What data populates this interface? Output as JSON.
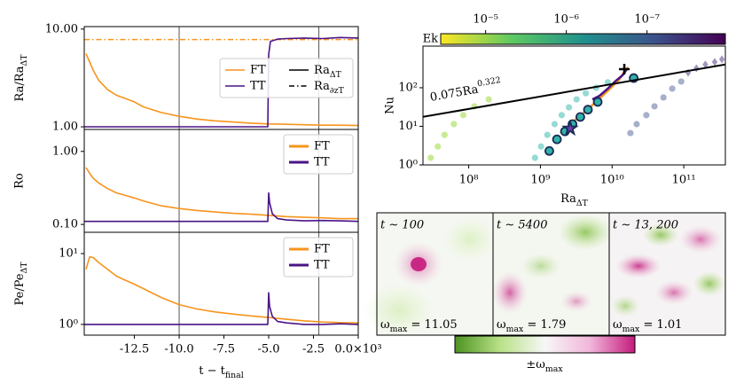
{
  "chart_data": [
    {
      "type": "line",
      "xlim": [
        -15.3,
        0
      ],
      "xticks": [
        -12.5,
        {
          "value": -10,
          "label": "-10.0"
        },
        -7.5,
        {
          "value": -5,
          "label": "-5.0"
        },
        -2.5,
        {
          "value": 0,
          "label": "0.0×10³"
        }
      ],
      "xlabel": {
        "text": "t − t",
        "sub": "final"
      },
      "vlines": [
        -10,
        -2.2
      ],
      "vline_color": "#555555",
      "panels": [
        {
          "ylabel": {
            "text": "Ra/Ra",
            "sub": "ΔT"
          },
          "log": true,
          "ylim": [
            0.94,
            10.6
          ],
          "yticks": [
            {
              "value": 1,
              "label": "1.00"
            },
            {
              "value": 10,
              "label": "10.00"
            }
          ],
          "legend": "center right",
          "legend_columns": 2,
          "legend_linewidth": 1.5,
          "hline": {
            "value": 7.8,
            "color": "#f7941d",
            "dash": "6 3 1.5 3"
          },
          "series": [
            {
              "name": "FT",
              "color": "#f7941d",
              "x": [
                -15.2,
                -15,
                -14.8,
                -14.5,
                -14,
                -13.5,
                -13,
                -12.5,
                -12,
                -11,
                -10,
                -9,
                -8,
                -7,
                -6,
                -5,
                -4,
                -3,
                -2,
                -1,
                0
              ],
              "values": [
                5.6,
                4.6,
                3.8,
                3.0,
                2.4,
                2.1,
                1.95,
                1.8,
                1.6,
                1.4,
                1.28,
                1.2,
                1.15,
                1.12,
                1.09,
                1.07,
                1.06,
                1.05,
                1.04,
                1.04,
                1.03
              ]
            },
            {
              "name": "TT",
              "color": "#4a1486",
              "x": [
                -15.3,
                -5.05,
                -5.0,
                -4.9,
                -4.5,
                -4,
                -3,
                -2,
                -1,
                0
              ],
              "values": [
                1.0,
                1.0,
                5.5,
                7.5,
                7.9,
                8.0,
                8.1,
                8.0,
                8.2,
                8.1
              ]
            }
          ],
          "legend_extra": [
            {
              "name": {
                "text": "Ra",
                "sub": "ΔT"
              },
              "color": "#000000",
              "dash": "none"
            },
            {
              "name": {
                "text": "Ra",
                "sub": "∂zT"
              },
              "color": "#000000",
              "dash": "6 3 1.5 3"
            }
          ]
        },
        {
          "ylabel": "Ro",
          "log": true,
          "ylim": [
            0.078,
            2.0
          ],
          "yticks": [
            {
              "value": 0.1,
              "label": "0.10"
            },
            {
              "value": 1,
              "label": "1.00"
            }
          ],
          "legend": "upper right",
          "legend_columns": 1,
          "legend_linewidth": 3,
          "series": [
            {
              "name": "FT",
              "color": "#f7941d",
              "x": [
                -15.2,
                -15,
                -14.8,
                -14.5,
                -14,
                -13.5,
                -13,
                -12.5,
                -12,
                -11,
                -10,
                -9,
                -8,
                -7,
                -6,
                -5,
                -4,
                -3,
                -2,
                -1,
                0
              ],
              "values": [
                0.6,
                0.5,
                0.43,
                0.37,
                0.31,
                0.27,
                0.25,
                0.23,
                0.21,
                0.18,
                0.165,
                0.155,
                0.148,
                0.142,
                0.138,
                0.133,
                0.128,
                0.125,
                0.123,
                0.12,
                0.12
              ]
            },
            {
              "name": "TT",
              "color": "#4a1486",
              "x": [
                -15.3,
                -5.05,
                -5.0,
                -4.95,
                -4.8,
                -4.5,
                -4,
                -3,
                -2,
                -1,
                0
              ],
              "values": [
                0.11,
                0.11,
                0.27,
                0.2,
                0.14,
                0.12,
                0.115,
                0.112,
                0.113,
                0.112,
                0.11
              ]
            }
          ]
        },
        {
          "ylabel": {
            "text": "Pe/Pe",
            "sub": "ΔT"
          },
          "log": true,
          "ylim": [
            0.705,
            20
          ],
          "yticks": [
            {
              "value": 1,
              "label": "10⁰"
            },
            {
              "value": 10,
              "label": "10¹"
            }
          ],
          "legend": "upper right",
          "legend_columns": 1,
          "legend_linewidth": 3,
          "series": [
            {
              "name": "FT",
              "color": "#f7941d",
              "x": [
                -15.2,
                -15,
                -14.8,
                -14.5,
                -14,
                -13.5,
                -13,
                -12.5,
                -12,
                -11,
                -10,
                -9,
                -8,
                -7,
                -6,
                -5,
                -4,
                -3,
                -2,
                -1,
                0
              ],
              "values": [
                6,
                9,
                8.8,
                7.5,
                6,
                4.8,
                4.2,
                3.7,
                3.2,
                2.4,
                1.9,
                1.65,
                1.5,
                1.4,
                1.32,
                1.25,
                1.18,
                1.12,
                1.08,
                1.06,
                1.05
              ]
            },
            {
              "name": "TT",
              "color": "#4a1486",
              "x": [
                -15.3,
                -5.05,
                -5.0,
                -4.95,
                -4.8,
                -4.5,
                -4,
                -3,
                -2,
                -1,
                0
              ],
              "values": [
                1,
                1,
                2.8,
                1.8,
                1.3,
                1.1,
                1.05,
                1.0,
                1.0,
                1.02,
                1.0
              ]
            }
          ]
        }
      ]
    },
    {
      "type": "scatter",
      "xlabel": {
        "text": "Ra",
        "sub": "ΔT"
      },
      "ylabel": "Nu",
      "log": true,
      "xlim": [
        23000000.0,
        380000000000.0
      ],
      "ylim": [
        1,
        1200
      ],
      "xticks": [
        {
          "value": 100000000.0,
          "label": "10⁸"
        },
        {
          "value": 1000000000.0,
          "label": "10⁹"
        },
        {
          "value": 10000000000.0,
          "label": "10¹⁰"
        },
        {
          "value": 100000000000.0,
          "label": "10¹¹"
        }
      ],
      "yticks": [
        {
          "value": 1,
          "label": "10⁰"
        },
        {
          "value": 10,
          "label": "10¹"
        },
        {
          "value": 100,
          "label": "10²"
        }
      ],
      "fit": {
        "coef": 0.075,
        "exp": 0.322,
        "color": "#000000"
      },
      "annotation": {
        "text": "0.075Ra",
        "sup": "0.322"
      },
      "colorbar": {
        "label": "Ek",
        "lim": [
          3.6e-05,
          1.07e-08
        ],
        "ticks": [
          {
            "value": 1e-05,
            "label": "10⁻⁵"
          },
          {
            "value": 1e-06,
            "label": "10⁻⁶"
          },
          {
            "value": 1e-07,
            "label": "10⁻⁷"
          }
        ],
        "colors": [
          "#fde725",
          "#5ec962",
          "#21918c",
          "#3b528b",
          "#440154"
        ]
      },
      "groups": [
        {
          "marker": "circle",
          "color": "#9bd93c",
          "alpha": 0.55,
          "x": [
            29500000.0,
            37000000.0,
            46000000.0,
            62000000.0,
            84000000.0,
            120000000.0,
            190000000.0
          ],
          "y": [
            1.53,
            3.0,
            6.0,
            11.4,
            19.5,
            33,
            50
          ]
        },
        {
          "marker": "circle",
          "color": "#3fbcb0",
          "alpha": 0.55,
          "x": [
            840000000.0,
            1020000000.0,
            1250000000.0,
            1580000000.0,
            1980000000.0,
            2500000000.0,
            3200000000.0,
            4300000000.0,
            6000000000.0,
            8700000000.0
          ],
          "y": [
            1.53,
            3.0,
            6.0,
            11.4,
            19.5,
            31,
            50,
            72,
            100,
            138
          ]
        },
        {
          "marker": "circle",
          "color": "#3b4d8c",
          "alpha": 0.45,
          "x": [
            18000000000.0,
            22000000000.0,
            30000000000.0,
            39000000000.0,
            52000000000.0,
            69000000000.0,
            92000000000.0
          ],
          "y": [
            6.7,
            11.4,
            19.5,
            33,
            56,
            95,
            145
          ]
        },
        {
          "marker": "diamond",
          "color": "#472e7c",
          "alpha": 0.5,
          "x": [
            115000000000.0,
            150000000000.0,
            200000000000.0,
            270000000000.0,
            340000000000.0
          ],
          "y": [
            245,
            320,
            400,
            465,
            545
          ]
        },
        {
          "marker": "line",
          "color": "#f7941d",
          "alpha": 1,
          "x": [
            1900000000.0,
            2800000000.0,
            4300000000.0,
            6500000000.0,
            9400000000.0,
            12500000000.0,
            15000000000.0,
            16700000000.0
          ],
          "y": [
            6.7,
            12.7,
            25,
            50,
            95,
            160,
            270,
            340
          ]
        },
        {
          "marker": "line",
          "color": "#4a1486",
          "alpha": 1,
          "x": [
            16000000000.0,
            14000000000.0,
            11000000000.0,
            8700000000.0,
            6700000000.0,
            5300000000.0
          ],
          "y": [
            300,
            210,
            145,
            95,
            62,
            50
          ]
        },
        {
          "marker": "circle",
          "color": "#2fb3a8",
          "edge": "#1b2a55",
          "alpha": 1,
          "x": [
            1330000000.0,
            1700000000.0,
            2200000000.0,
            2800000000.0,
            3600000000.0,
            4600000000.0,
            6300000000.0,
            20000000000.0
          ],
          "y": [
            2.3,
            4.6,
            7.4,
            11.4,
            17.5,
            27,
            43,
            178
          ]
        },
        {
          "marker": "star",
          "color": "#6a3fb0",
          "edge": "#1b2a55",
          "alpha": 1,
          "x": [
            2600000000.0
          ],
          "y": [
            8.8
          ]
        },
        {
          "marker": "plus",
          "color": "#000000",
          "alpha": 1,
          "x": [
            14800000000.0
          ],
          "y": [
            303
          ]
        }
      ]
    }
  ],
  "snapshots": {
    "panels": [
      {
        "time": "t ∼ 100",
        "omega": {
          "text": "ω",
          "sub": "max",
          "after": " = 11.05"
        }
      },
      {
        "time": "t ∼ 5400",
        "omega": {
          "text": "ω",
          "sub": "max",
          "after": " = 1.79"
        }
      },
      {
        "time": "t ∼ 13, 200",
        "omega": {
          "text": "ω",
          "sub": "max",
          "after": " = 1.01"
        }
      }
    ],
    "colorbar": {
      "label": {
        "text": "±ω",
        "sub": "max"
      },
      "colors": [
        "#4d9221",
        "#b8e186",
        "#f7f7f7",
        "#f1b6da",
        "#c51b7d"
      ]
    }
  }
}
